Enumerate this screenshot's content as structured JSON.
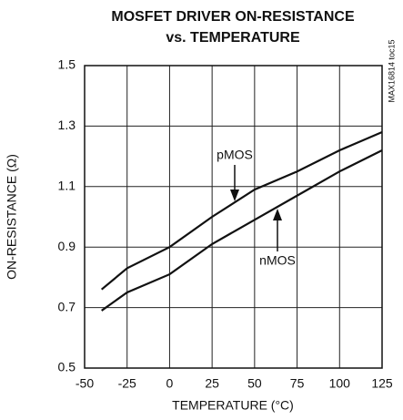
{
  "chart_data": {
    "type": "line",
    "title": [
      "MOSFET DRIVER ON-RESISTANCE",
      "vs. TEMPERATURE"
    ],
    "x_label": "TEMPERATURE (°C)",
    "y_label": "ON-RESISTANCE (Ω)",
    "side_note": "MAX16814 toc15",
    "x": [
      -40,
      -25,
      0,
      25,
      50,
      75,
      100,
      125
    ],
    "series": [
      {
        "name": "pMOS",
        "color": "#111111",
        "values": [
          0.76,
          0.83,
          0.9,
          1.0,
          1.09,
          1.15,
          1.22,
          1.28
        ]
      },
      {
        "name": "nMOS",
        "color": "#111111",
        "values": [
          0.69,
          0.75,
          0.81,
          0.91,
          0.99,
          1.07,
          1.15,
          1.22
        ]
      }
    ],
    "xlim": [
      -50,
      125
    ],
    "xticks": [
      -50,
      -25,
      0,
      25,
      50,
      75,
      100,
      125
    ],
    "ylim": [
      0.5,
      1.5
    ],
    "yticks": [
      0.5,
      0.7,
      0.9,
      1.1,
      1.3,
      1.5
    ],
    "grid": true
  }
}
